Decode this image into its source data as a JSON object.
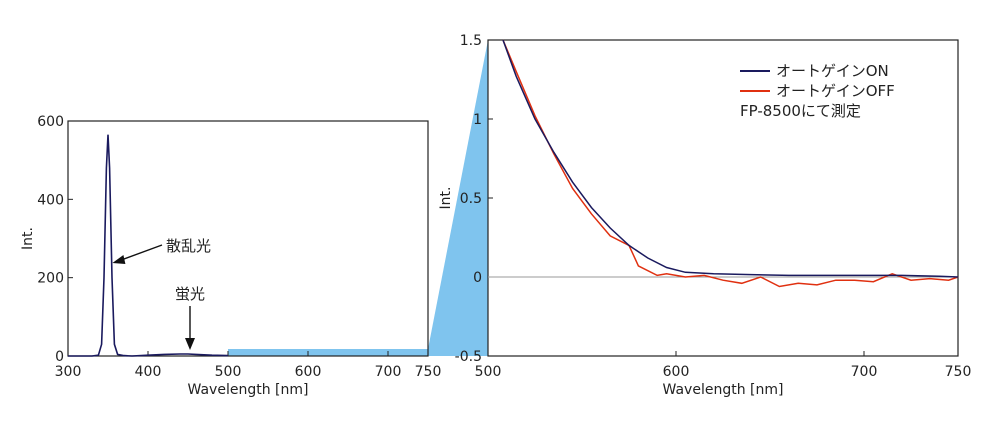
{
  "colors": {
    "on": "#1a1a5e",
    "off": "#e03010",
    "zoom": "#7fc4ee",
    "zero_line": "#999999"
  },
  "chart_data": [
    {
      "type": "line",
      "xlabel": "Wavelength [nm]",
      "ylabel": "Int.",
      "xlim": [
        300,
        750
      ],
      "ylim": [
        0,
        600
      ],
      "xticks": [
        "300",
        "400",
        "500",
        "600",
        "700",
        "750"
      ],
      "yticks": [
        "0",
        "200",
        "400",
        "600"
      ],
      "series": [
        {
          "x": [
            300,
            330,
            338,
            342,
            345,
            348,
            350,
            352,
            355,
            358,
            362,
            370,
            380,
            400,
            420,
            440,
            450,
            460,
            480,
            500
          ],
          "y": [
            0,
            0,
            2,
            30,
            200,
            480,
            565,
            480,
            200,
            30,
            4,
            1,
            0,
            2,
            4,
            5,
            5,
            4,
            2,
            1
          ]
        }
      ],
      "annotations": [
        {
          "text": "散乱光",
          "x": 353,
          "y": 245
        },
        {
          "text": "蛍光",
          "x": 450,
          "y": 0
        }
      ]
    },
    {
      "type": "line",
      "xlabel": "Wavelength [nm]",
      "ylabel": "Int.",
      "xlim": [
        500,
        750
      ],
      "ylim": [
        -0.5,
        1.5
      ],
      "xticks": [
        "500",
        "600",
        "700",
        "750"
      ],
      "yticks": [
        "-0.5",
        "0",
        "0.5",
        "1",
        "1.5"
      ],
      "legend_position": "top-right",
      "note": "FP-8500にて測定",
      "series": [
        {
          "name": "オートゲインON",
          "x": [
            508,
            515,
            525,
            535,
            545,
            555,
            565,
            575,
            585,
            595,
            605,
            620,
            640,
            660,
            680,
            700,
            720,
            740,
            750
          ],
          "y": [
            1.5,
            1.27,
            1.0,
            0.79,
            0.6,
            0.44,
            0.31,
            0.2,
            0.12,
            0.06,
            0.03,
            0.02,
            0.015,
            0.01,
            0.01,
            0.01,
            0.01,
            0.005,
            0.0
          ]
        },
        {
          "name": "オートゲインOFF",
          "x": [
            508,
            515,
            525,
            535,
            545,
            555,
            565,
            575,
            580,
            590,
            595,
            605,
            615,
            625,
            635,
            645,
            655,
            665,
            675,
            685,
            695,
            705,
            715,
            725,
            735,
            745,
            750
          ],
          "y": [
            1.5,
            1.3,
            1.02,
            0.78,
            0.56,
            0.4,
            0.26,
            0.2,
            0.07,
            0.01,
            0.02,
            0.0,
            0.01,
            -0.02,
            -0.04,
            0.0,
            -0.06,
            -0.04,
            -0.05,
            -0.02,
            -0.02,
            -0.03,
            0.02,
            -0.02,
            -0.01,
            -0.02,
            0.0
          ]
        }
      ]
    }
  ]
}
